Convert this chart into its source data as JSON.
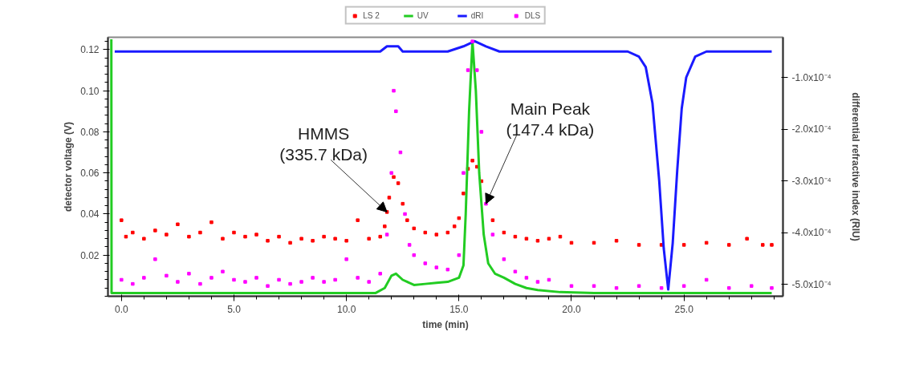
{
  "chart_data": {
    "type": "scatter",
    "xlabel": "time (min)",
    "ylabel": "detector voltage (V)",
    "y2label": "differential refractive index (RIU)",
    "xlim": [
      -0.6,
      29.4
    ],
    "xticks": [
      {
        "value": 0,
        "label": "0.0"
      },
      {
        "value": 5,
        "label": "5.0"
      },
      {
        "value": 10,
        "label": "10.0"
      },
      {
        "value": 15,
        "label": "15.0"
      },
      {
        "value": 20,
        "label": "20.0"
      },
      {
        "value": 25,
        "label": "25.0"
      }
    ],
    "ylim": [
      0.0,
      0.126
    ],
    "yticks": [
      0.02,
      0.04,
      0.06,
      0.08,
      {
        "value": 0.1,
        "label": "0.10"
      },
      0.12
    ],
    "y2lim": [
      -0.000523,
      -2.25e-05
    ],
    "y2ticks": [
      {
        "value": -0.0001,
        "label": "-1.0x10⁻⁴"
      },
      {
        "value": -0.0002,
        "label": "-2.0x10⁻⁴"
      },
      {
        "value": -0.0003,
        "label": "-3.0x10⁻⁴"
      },
      {
        "value": -0.0004,
        "label": "-4.0x10⁻⁴"
      },
      {
        "value": -0.0005,
        "label": "-5.0x10⁻⁴"
      }
    ],
    "legend": "top",
    "grid": false,
    "series": [
      {
        "name": "LS 2",
        "color": "#ff0000",
        "x": [
          0.0,
          0.2,
          0.5,
          1.0,
          1.5,
          2.0,
          2.5,
          3.0,
          3.5,
          4.0,
          4.5,
          5.0,
          5.5,
          6.0,
          6.5,
          7.0,
          7.5,
          8.0,
          8.5,
          9.0,
          9.5,
          10.0,
          10.5,
          11.0,
          11.5,
          11.7,
          11.8,
          11.9,
          12.1,
          12.3,
          12.5,
          12.7,
          13.0,
          13.5,
          14.0,
          14.5,
          14.8,
          15.0,
          15.2,
          15.4,
          15.6,
          15.8,
          16.0,
          16.2,
          16.5,
          17.0,
          17.5,
          18.0,
          18.5,
          19.0,
          19.5,
          20.0,
          21.0,
          22.0,
          23.0,
          24.0,
          25.0,
          26.0,
          27.0,
          27.8,
          28.5,
          28.9
        ],
        "values": [
          0.037,
          0.029,
          0.031,
          0.028,
          0.032,
          0.03,
          0.035,
          0.029,
          0.031,
          0.036,
          0.028,
          0.031,
          0.029,
          0.03,
          0.027,
          0.029,
          0.026,
          0.028,
          0.027,
          0.029,
          0.028,
          0.027,
          0.037,
          0.028,
          0.029,
          0.034,
          0.041,
          0.048,
          0.058,
          0.055,
          0.045,
          0.037,
          0.033,
          0.031,
          0.03,
          0.031,
          0.034,
          0.038,
          0.05,
          0.062,
          0.066,
          0.063,
          0.056,
          null,
          0.037,
          0.031,
          0.029,
          0.028,
          0.027,
          0.028,
          0.029,
          0.026,
          0.026,
          0.027,
          0.025,
          0.025,
          0.025,
          0.026,
          0.025,
          0.028,
          0.025,
          0.025
        ]
      },
      {
        "name": "UV",
        "type": "line",
        "color": "#22cc22",
        "x": [
          -0.45,
          -0.44,
          0.0,
          11.3,
          11.7,
          12.0,
          12.2,
          12.5,
          13.0,
          13.5,
          14.0,
          14.5,
          15.0,
          15.2,
          15.3,
          15.45,
          15.6,
          15.75,
          15.9,
          16.1,
          16.3,
          16.6,
          17.0,
          17.5,
          18.0,
          18.5,
          19.5,
          21.0,
          28.9
        ],
        "values": [
          0.125,
          0.0016,
          0.0016,
          0.0016,
          0.004,
          0.01,
          0.011,
          0.008,
          0.0055,
          0.006,
          0.0065,
          0.007,
          0.009,
          0.015,
          0.04,
          0.09,
          0.124,
          0.1,
          0.06,
          0.03,
          0.016,
          0.011,
          0.009,
          0.006,
          0.004,
          0.003,
          0.002,
          0.0016,
          0.0016
        ]
      },
      {
        "name": "dRI",
        "type": "line",
        "axis": "y2",
        "color": "#1a1aff",
        "x": [
          -0.3,
          11.5,
          11.8,
          12.3,
          12.5,
          14.5,
          15.2,
          15.7,
          16.2,
          16.8,
          17.2,
          22.5,
          23.0,
          23.3,
          23.6,
          23.9,
          24.1,
          24.3,
          24.5,
          24.7,
          24.9,
          25.1,
          25.5,
          26.0,
          26.5,
          28.9
        ],
        "values": [
          -5e-05,
          -5e-05,
          -4e-05,
          -4e-05,
          -5e-05,
          -5e-05,
          -4e-05,
          -3e-05,
          -4e-05,
          -5e-05,
          -5e-05,
          -5e-05,
          -6e-05,
          -8e-05,
          -0.00015,
          -0.0003,
          -0.00043,
          -0.00051,
          -0.00042,
          -0.00028,
          -0.00016,
          -0.0001,
          -6e-05,
          -5e-05,
          -5e-05,
          -5e-05
        ]
      },
      {
        "name": "DLS",
        "color": "#ff00ff",
        "x": [
          0.0,
          0.5,
          1.0,
          1.5,
          2.0,
          2.5,
          3.0,
          3.5,
          4.0,
          4.5,
          5.0,
          5.5,
          6.0,
          6.5,
          7.0,
          7.5,
          8.0,
          8.5,
          9.0,
          9.5,
          10.0,
          10.5,
          11.0,
          11.5,
          11.8,
          12.0,
          12.1,
          12.2,
          12.4,
          12.6,
          12.8,
          13.0,
          13.5,
          14.0,
          14.5,
          15.0,
          15.2,
          15.4,
          15.6,
          15.8,
          16.0,
          16.2,
          16.5,
          17.0,
          17.5,
          18.0,
          18.5,
          19.0,
          20.0,
          21.0,
          22.0,
          23.0,
          24.0,
          25.0,
          26.0,
          27.0,
          28.0,
          28.9
        ],
        "values": [
          0.008,
          0.006,
          0.009,
          0.018,
          0.01,
          0.007,
          0.011,
          0.006,
          0.009,
          0.012,
          0.008,
          0.007,
          0.009,
          0.005,
          0.008,
          0.006,
          0.007,
          0.009,
          0.007,
          0.008,
          0.018,
          0.009,
          0.007,
          0.011,
          0.03,
          0.06,
          0.1,
          0.09,
          0.07,
          0.04,
          0.025,
          0.02,
          0.016,
          0.014,
          0.013,
          0.02,
          0.06,
          0.11,
          0.124,
          0.11,
          0.08,
          0.045,
          0.03,
          0.018,
          0.012,
          0.009,
          0.007,
          0.008,
          0.005,
          0.005,
          0.004,
          0.005,
          0.004,
          0.005,
          0.008,
          0.004,
          0.005,
          0.004
        ]
      }
    ],
    "annotations": [
      {
        "text": "HMMS\n(335.7 kDa)",
        "x": 11.8,
        "y": 0.041
      },
      {
        "text": "Main Peak\n(147.4 kDa)",
        "x": 16.2,
        "y": 0.045
      }
    ]
  }
}
